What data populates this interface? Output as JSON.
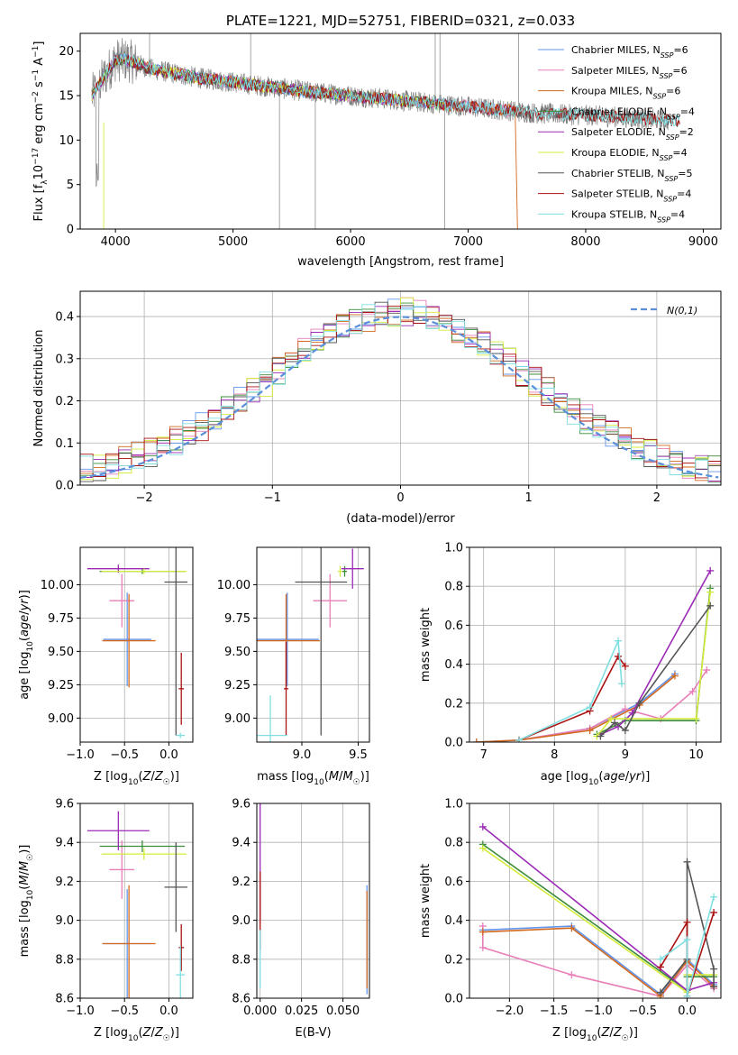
{
  "colors": {
    "Chabrier MILES": "#6495ed",
    "Salpeter MILES": "#e87fb8",
    "Kroupa MILES": "#d2691e",
    "Chabrier ELODIE": "#3b8c3b",
    "Salpeter ELODIE": "#9b2ab5",
    "Kroupa ELODIE": "#d4ec3c",
    "Chabrier STELIB": "#555555",
    "Salpeter STELIB": "#aa1111",
    "Kroupa STELIB": "#7fdfe0",
    "data": "#808080",
    "gauss": "#5b8fd9"
  },
  "chart_data": [
    {
      "id": "spectrum",
      "type": "line",
      "title": "PLATE=1221, MJD=52751, FIBERID=0321, z=0.033",
      "xlabel": "wavelength [Angstrom, rest frame]",
      "ylabel_text": "Flux [f",
      "ylabel_rest": "10",
      "ylabel_units": "erg cm",
      "ylabel_tail": "s",
      "ylabel_end": "A",
      "xlim": [
        3700,
        9150
      ],
      "ylim": [
        0,
        22
      ],
      "xticks": [
        4000,
        5000,
        6000,
        7000,
        8000,
        9000
      ],
      "yticks": [
        0,
        5,
        10,
        15,
        20
      ],
      "legend_position": "top-right",
      "legend": [
        {
          "name": "Chabrier MILES",
          "nssp": "6"
        },
        {
          "name": "Salpeter MILES",
          "nssp": "6"
        },
        {
          "name": "Kroupa MILES",
          "nssp": "6"
        },
        {
          "name": "Chabrier ELODIE",
          "nssp": "4"
        },
        {
          "name": "Salpeter ELODIE",
          "nssp": "2"
        },
        {
          "name": "Kroupa ELODIE",
          "nssp": "4"
        },
        {
          "name": "Chabrier STELIB",
          "nssp": "5"
        },
        {
          "name": "Salpeter STELIB",
          "nssp": "4"
        },
        {
          "name": "Kroupa STELIB",
          "nssp": "4"
        }
      ],
      "continuum": [
        [
          3800,
          15
        ],
        [
          3900,
          17
        ],
        [
          4000,
          19
        ],
        [
          4100,
          19
        ],
        [
          4300,
          18
        ],
        [
          4500,
          17.5
        ],
        [
          4700,
          17
        ],
        [
          5000,
          16.5
        ],
        [
          5300,
          16
        ],
        [
          5600,
          15.5
        ],
        [
          6000,
          15
        ],
        [
          6400,
          14.5
        ],
        [
          6800,
          14
        ],
        [
          7200,
          13.5
        ],
        [
          7600,
          13
        ],
        [
          8000,
          12.8
        ],
        [
          8400,
          12.5
        ],
        [
          8700,
          12.2
        ]
      ]
    },
    {
      "id": "residuals",
      "type": "histogram",
      "xlabel": "(data-model)/error",
      "ylabel": "Normed distribution",
      "xlim": [
        -2.5,
        2.5
      ],
      "ylim": [
        0,
        0.46
      ],
      "xticks": [
        -2,
        -1,
        0,
        1,
        2
      ],
      "yticks": [
        0.0,
        0.1,
        0.2,
        0.3,
        0.4
      ],
      "gaussian_label": "N(0,1)",
      "legend_position": "top-right",
      "grid": true
    },
    {
      "id": "age_vs_Z",
      "type": "errorbar",
      "xlabel": "Z [log10(Z/Z☉)]",
      "ylabel": "age [log10(age/yr)]",
      "xlim": [
        -1.0,
        0.27
      ],
      "ylim": [
        8.82,
        10.28
      ],
      "xticks": [
        -1.0,
        -0.5,
        0.0
      ],
      "yticks": [
        9.0,
        9.25,
        9.5,
        9.75,
        10.0
      ],
      "grid": true,
      "points": [
        {
          "s": "Chabrier MILES",
          "x": -0.47,
          "xe": 0.27,
          "y": 9.59,
          "ye": 0.35
        },
        {
          "s": "Salpeter MILES",
          "x": -0.53,
          "xe": 0.14,
          "y": 9.88,
          "ye": 0.2
        },
        {
          "s": "Kroupa MILES",
          "x": -0.45,
          "xe": 0.3,
          "y": 9.58,
          "ye": 0.35
        },
        {
          "s": "Chabrier ELODIE",
          "x": -0.3,
          "xe": 0.48,
          "y": 10.1,
          "ye": 0.02
        },
        {
          "s": "Salpeter ELODIE",
          "x": -0.57,
          "xe": 0.35,
          "y": 10.12,
          "ye": 0.03
        },
        {
          "s": "Kroupa ELODIE",
          "x": -0.28,
          "xe": 0.48,
          "y": 10.1,
          "ye": 0.02
        },
        {
          "s": "Chabrier STELIB",
          "x": 0.08,
          "xe": 0.13,
          "y": 10.02,
          "ye": 1.15
        },
        {
          "s": "Salpeter STELIB",
          "x": 0.14,
          "xe": 0.03,
          "y": 9.22,
          "ye": 0.27
        },
        {
          "s": "Kroupa STELIB",
          "x": 0.13,
          "xe": 0.05,
          "y": 8.87,
          "ye": 0.02
        }
      ]
    },
    {
      "id": "age_vs_mass",
      "type": "errorbar",
      "xlabel": "mass [log10(M/M☉)]",
      "ylabel": "",
      "xlim": [
        8.6,
        9.6
      ],
      "ylim": [
        8.82,
        10.28
      ],
      "xticks": [
        9.0,
        9.5
      ],
      "yticks": [
        9.0,
        9.25,
        9.5,
        9.75,
        10.0
      ],
      "grid": true,
      "points": [
        {
          "s": "Chabrier MILES",
          "x": 8.87,
          "xe": 0.28,
          "y": 9.59,
          "ye": 0.35
        },
        {
          "s": "Salpeter MILES",
          "x": 9.25,
          "xe": 0.15,
          "y": 9.88,
          "ye": 0.2
        },
        {
          "s": "Kroupa MILES",
          "x": 8.86,
          "xe": 0.3,
          "y": 9.58,
          "ye": 0.35
        },
        {
          "s": "Chabrier ELODIE",
          "x": 9.38,
          "xe": 0.02,
          "y": 10.1,
          "ye": 0.04
        },
        {
          "s": "Salpeter ELODIE",
          "x": 9.45,
          "xe": 0.1,
          "y": 10.12,
          "ye": 0.15
        },
        {
          "s": "Kroupa ELODIE",
          "x": 9.34,
          "xe": 0.02,
          "y": 10.1,
          "ye": 0.04
        },
        {
          "s": "Chabrier STELIB",
          "x": 9.17,
          "xe": 0.23,
          "y": 10.02,
          "ye": 1.15
        },
        {
          "s": "Salpeter STELIB",
          "x": 8.86,
          "xe": 0.02,
          "y": 9.22,
          "ye": 0.35
        },
        {
          "s": "Kroupa STELIB",
          "x": 8.72,
          "xe": 0.15,
          "y": 8.87,
          "ye": 0.3
        }
      ]
    },
    {
      "id": "weight_vs_age",
      "type": "line",
      "xlabel": "age [log10(age/yr)]",
      "ylabel": "mass weight",
      "xlim": [
        6.8,
        10.35
      ],
      "ylim": [
        0,
        1.0
      ],
      "xticks": [
        7,
        8,
        9,
        10
      ],
      "yticks": [
        0.0,
        0.2,
        0.4,
        0.6,
        0.8,
        1.0
      ],
      "grid": true,
      "series": [
        {
          "s": "Chabrier MILES",
          "x": [
            6.9,
            7.5,
            8.5,
            9.2,
            9.7
          ],
          "y": [
            0.0,
            0.01,
            0.07,
            0.2,
            0.35
          ]
        },
        {
          "s": "Salpeter MILES",
          "x": [
            7.5,
            8.5,
            9.0,
            9.5,
            9.95,
            10.15
          ],
          "y": [
            0.01,
            0.07,
            0.17,
            0.12,
            0.26,
            0.37
          ]
        },
        {
          "s": "Kroupa MILES",
          "x": [
            6.9,
            7.5,
            8.5,
            9.2,
            9.7
          ],
          "y": [
            0.0,
            0.01,
            0.06,
            0.19,
            0.34
          ]
        },
        {
          "s": "Chabrier ELODIE",
          "x": [
            8.6,
            9.0,
            10.0,
            10.2
          ],
          "y": [
            0.04,
            0.11,
            0.11,
            0.79
          ]
        },
        {
          "s": "Salpeter ELODIE",
          "x": [
            8.65,
            8.9,
            9.1,
            10.2
          ],
          "y": [
            0.04,
            0.08,
            0.15,
            0.88
          ]
        },
        {
          "s": "Kroupa ELODIE",
          "x": [
            8.6,
            8.8,
            10.0,
            10.2
          ],
          "y": [
            0.03,
            0.12,
            0.12,
            0.77
          ]
        },
        {
          "s": "Chabrier STELIB",
          "x": [
            8.65,
            8.85,
            9.0,
            9.2,
            10.2
          ],
          "y": [
            0.03,
            0.1,
            0.06,
            0.2,
            0.7
          ]
        },
        {
          "s": "Salpeter STELIB",
          "x": [
            7.5,
            8.5,
            8.9,
            9.0
          ],
          "y": [
            0.01,
            0.16,
            0.44,
            0.39
          ]
        },
        {
          "s": "Kroupa STELIB",
          "x": [
            7.5,
            8.5,
            8.9,
            8.95
          ],
          "y": [
            0.01,
            0.18,
            0.52,
            0.3
          ]
        }
      ]
    },
    {
      "id": "mass_vs_Z",
      "type": "errorbar",
      "xlabel": "Z [log10(Z/Z☉)]",
      "ylabel": "mass [log10(M/M☉)]",
      "xlim": [
        -1.0,
        0.27
      ],
      "ylim": [
        8.6,
        9.6
      ],
      "xticks": [
        -1.0,
        -0.5,
        0.0
      ],
      "yticks": [
        8.6,
        8.8,
        9.0,
        9.2,
        9.4,
        9.6
      ],
      "grid": true,
      "points": [
        {
          "s": "Chabrier MILES",
          "x": -0.47,
          "xe": 0.27,
          "y": 8.88,
          "ye": 0.28
        },
        {
          "s": "Salpeter MILES",
          "x": -0.53,
          "xe": 0.14,
          "y": 9.26,
          "ye": 0.15
        },
        {
          "s": "Kroupa MILES",
          "x": -0.45,
          "xe": 0.3,
          "y": 8.88,
          "ye": 0.3
        },
        {
          "s": "Chabrier ELODIE",
          "x": -0.3,
          "xe": 0.48,
          "y": 9.38,
          "ye": 0.03
        },
        {
          "s": "Salpeter ELODIE",
          "x": -0.57,
          "xe": 0.35,
          "y": 9.46,
          "ye": 0.1
        },
        {
          "s": "Kroupa ELODIE",
          "x": -0.28,
          "xe": 0.48,
          "y": 9.34,
          "ye": 0.03
        },
        {
          "s": "Chabrier STELIB",
          "x": 0.08,
          "xe": 0.13,
          "y": 9.17,
          "ye": 0.23
        },
        {
          "s": "Salpeter STELIB",
          "x": 0.14,
          "xe": 0.03,
          "y": 8.86,
          "ye": 0.12
        },
        {
          "s": "Kroupa STELIB",
          "x": 0.13,
          "xe": 0.05,
          "y": 8.72,
          "ye": 0.15
        }
      ]
    },
    {
      "id": "mass_vs_ebv",
      "type": "errorbar",
      "xlabel": "E(B-V)",
      "ylabel": "",
      "xlim": [
        -0.002,
        0.066
      ],
      "ylim": [
        8.6,
        9.6
      ],
      "xticks": [
        0.0,
        0.025,
        0.05
      ],
      "yticks": [
        8.6,
        8.8,
        9.0,
        9.2,
        9.4,
        9.6
      ],
      "grid": true,
      "points": [
        {
          "s": "Salpeter ELODIE",
          "x": 0.0,
          "xe": 0,
          "y": 9.3,
          "ye": 0.3
        },
        {
          "s": "Salpeter STELIB",
          "x": 0.0,
          "xe": 0,
          "y": 9.05,
          "ye": 0.2
        },
        {
          "s": "Kroupa STELIB",
          "x": 0.0,
          "xe": 0,
          "y": 8.8,
          "ye": 0.15
        },
        {
          "s": "Chabrier MILES",
          "x": 0.0645,
          "xe": 0,
          "y": 8.9,
          "ye": 0.28
        },
        {
          "s": "Kroupa MILES",
          "x": 0.0645,
          "xe": 0,
          "y": 8.9,
          "ye": 0.25
        }
      ]
    },
    {
      "id": "weight_vs_Z",
      "type": "line",
      "xlabel": "Z [log10(Z/Z☉)]",
      "ylabel": "mass weight",
      "xlim": [
        -2.45,
        0.38
      ],
      "ylim": [
        0,
        1.0
      ],
      "xticks": [
        -2.0,
        -1.5,
        -1.0,
        -0.5,
        0.0
      ],
      "yticks": [
        0.0,
        0.2,
        0.4,
        0.6,
        0.8,
        1.0
      ],
      "grid": true,
      "series": [
        {
          "s": "Chabrier MILES",
          "x": [
            -2.3,
            -1.3,
            -0.3,
            0.0,
            0.3
          ],
          "y": [
            0.35,
            0.37,
            0.02,
            0.2,
            0.07
          ]
        },
        {
          "s": "Salpeter MILES",
          "x": [
            -2.3,
            -2.3,
            -1.3,
            -0.3,
            0.0,
            0.3
          ],
          "y": [
            0.37,
            0.26,
            0.12,
            0.01,
            0.17,
            0.05
          ]
        },
        {
          "s": "Kroupa MILES",
          "x": [
            -2.3,
            -1.3,
            -0.3,
            0.0,
            0.3
          ],
          "y": [
            0.34,
            0.36,
            0.01,
            0.19,
            0.06
          ]
        },
        {
          "s": "Chabrier ELODIE",
          "x": [
            -2.3,
            0.0,
            0.0,
            0.3
          ],
          "y": [
            0.79,
            0.04,
            0.11,
            0.11
          ]
        },
        {
          "s": "Salpeter ELODIE",
          "x": [
            -2.3,
            0.0,
            0.3
          ],
          "y": [
            0.88,
            0.04,
            0.08
          ]
        },
        {
          "s": "Kroupa ELODIE",
          "x": [
            -2.3,
            0.0,
            0.0,
            0.3
          ],
          "y": [
            0.77,
            0.03,
            0.12,
            0.12
          ]
        },
        {
          "s": "Chabrier STELIB",
          "x": [
            -0.3,
            0.0,
            0.0,
            0.3,
            0.3
          ],
          "y": [
            0.03,
            0.2,
            0.7,
            0.15,
            0.06
          ]
        },
        {
          "s": "Salpeter STELIB",
          "x": [
            -0.3,
            0.0,
            0.0,
            0.3
          ],
          "y": [
            0.16,
            0.39,
            0.01,
            0.44
          ]
        },
        {
          "s": "Kroupa STELIB",
          "x": [
            -0.3,
            0.0,
            0.0,
            0.3
          ],
          "y": [
            0.2,
            0.3,
            0.01,
            0.52
          ]
        }
      ]
    }
  ]
}
